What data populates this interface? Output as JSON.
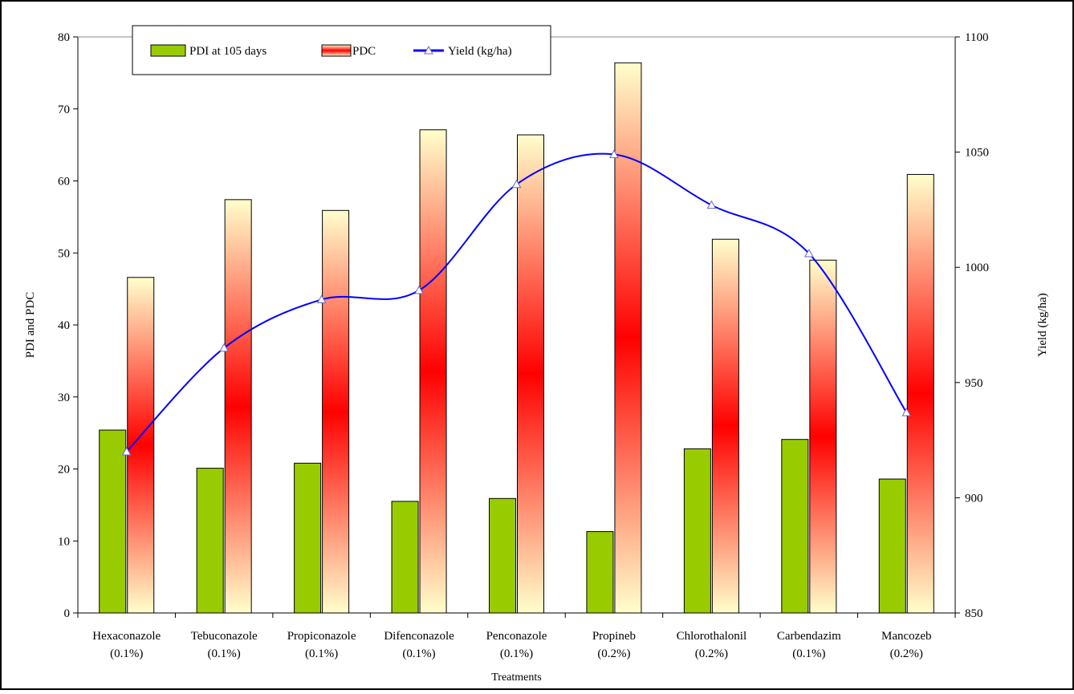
{
  "chart_data": {
    "type": "bar",
    "categories": [
      [
        "Hexaconazole",
        "(0.1%)"
      ],
      [
        "Tebuconazole",
        "(0.1%)"
      ],
      [
        "Propiconazole",
        "(0.1%)"
      ],
      [
        "Difenconazole",
        "(0.1%)"
      ],
      [
        "Penconazole",
        "(0.1%)"
      ],
      [
        "Propineb",
        "(0.2%)"
      ],
      [
        "Chlorothalonil",
        "(0.2%)"
      ],
      [
        "Carbendazim",
        "(0.1%)"
      ],
      [
        "Mancozeb",
        "(0.2%)"
      ]
    ],
    "series": [
      {
        "name": "PDI at 105 days",
        "type": "bar",
        "axis": "left",
        "color": "#99cc00",
        "values": [
          25.4,
          20.1,
          20.8,
          15.5,
          15.9,
          11.3,
          22.8,
          24.1,
          18.6
        ]
      },
      {
        "name": "PDC",
        "type": "bar",
        "axis": "left",
        "color_gradient": [
          "#ffffcc",
          "#ff0000"
        ],
        "values": [
          46.6,
          57.4,
          55.9,
          67.1,
          66.4,
          76.4,
          51.9,
          49.0,
          60.9
        ]
      },
      {
        "name": "Yield (kg/ha)",
        "type": "line",
        "axis": "right",
        "color": "#0000ff",
        "marker": "triangle",
        "values": [
          920,
          965,
          986,
          990,
          1036,
          1049,
          1027,
          1006,
          937
        ]
      }
    ],
    "xlabel": "Treatments",
    "ylabel": "PDI and PDC",
    "y2label": "Yield (kg/ha)",
    "ylim": [
      0,
      80
    ],
    "y2lim": [
      850,
      1100
    ],
    "yticks": [
      0,
      10,
      20,
      30,
      40,
      50,
      60,
      70,
      80
    ],
    "y2ticks": [
      850,
      900,
      950,
      1000,
      1050,
      1100
    ],
    "grid": false,
    "legend": "top-left"
  }
}
